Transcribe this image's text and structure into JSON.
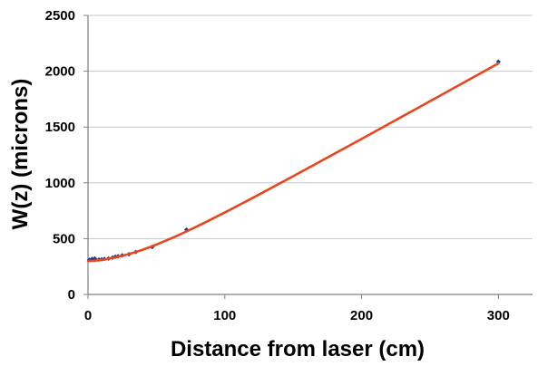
{
  "chart_data": {
    "type": "scatter",
    "title": "",
    "xlabel": "Distance from laser (cm)",
    "ylabel": "W(z) (microns)",
    "xlim": [
      0,
      325
    ],
    "ylim": [
      0,
      2500
    ],
    "x_ticks": [
      0,
      100,
      200,
      300
    ],
    "y_ticks": [
      0,
      500,
      1000,
      1500,
      2000,
      2500
    ],
    "x_tick_labels": [
      "0",
      "100",
      "200",
      "300"
    ],
    "y_tick_labels": [
      "0",
      "500",
      "1000",
      "1500",
      "2000",
      "2500"
    ],
    "grid": {
      "horizontal": true,
      "vertical": false
    },
    "legend": "none",
    "series": [
      {
        "kind": "points",
        "color": "#1f3a8a",
        "x": [
          1,
          3,
          5,
          8,
          10,
          12,
          15,
          18,
          20,
          22,
          25,
          30,
          35,
          47,
          72,
          300
        ],
        "y": [
          310,
          318,
          322,
          312,
          315,
          318,
          322,
          330,
          338,
          342,
          350,
          360,
          380,
          425,
          580,
          2085
        ]
      },
      {
        "kind": "fit-line",
        "color": "#e8461e",
        "x": [
          0,
          5,
          10,
          15,
          20,
          25,
          30,
          35,
          40,
          45,
          50,
          55,
          60,
          65,
          70,
          80,
          90,
          100,
          120,
          150,
          200,
          250,
          300
        ],
        "y": [
          300,
          303,
          310,
          320,
          332,
          346,
          362,
          380,
          401,
          423,
          447,
          472,
          498,
          525,
          553,
          611,
          672,
          734,
          862,
          1059,
          1393,
          1731,
          2070
        ]
      }
    ],
    "colors": {
      "axis": "#808080",
      "grid": "#c8c8c8",
      "points": "#1f3a8a",
      "fit": "#e8461e"
    }
  }
}
